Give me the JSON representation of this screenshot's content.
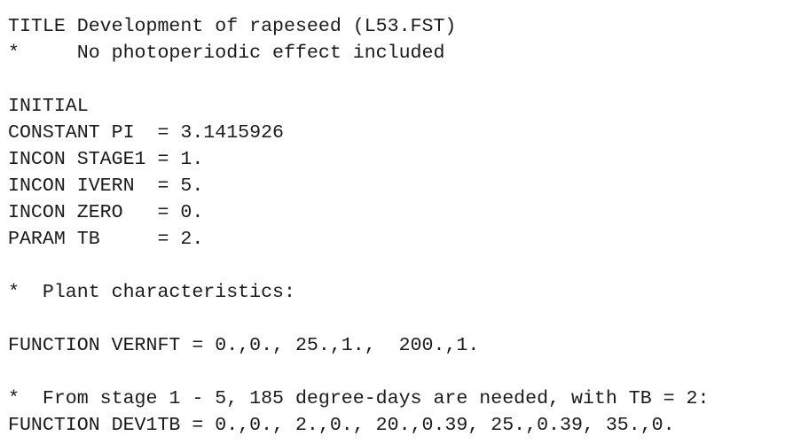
{
  "document": {
    "lines": [
      "TITLE Development of rapeseed (L53.FST)",
      "*     No photoperiodic effect included",
      "",
      "INITIAL",
      "CONSTANT PI  = 3.1415926",
      "INCON STAGE1 = 1.",
      "INCON IVERN  = 5.",
      "INCON ZERO   = 0.",
      "PARAM TB     = 2.",
      "",
      "*  Plant characteristics:",
      "",
      "FUNCTION VERNFT = 0.,0., 25.,1.,  200.,1.",
      "",
      "*  From stage 1 - 5, 185 degree-days are needed, with TB = 2:",
      "FUNCTION DEV1TB = 0.,0., 2.,0., 20.,0.39, 25.,0.39, 35.,0."
    ]
  }
}
